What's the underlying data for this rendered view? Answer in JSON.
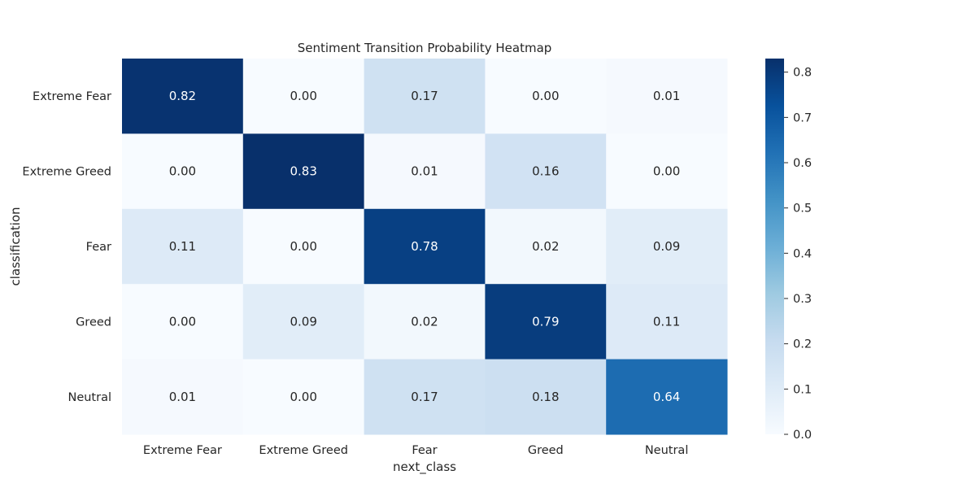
{
  "chart_data": {
    "type": "heatmap",
    "title": "Sentiment Transition Probability Heatmap",
    "xlabel": "next_class",
    "ylabel": "classification",
    "x_categories": [
      "Extreme Fear",
      "Extreme Greed",
      "Fear",
      "Greed",
      "Neutral"
    ],
    "y_categories": [
      "Extreme Fear",
      "Extreme Greed",
      "Fear",
      "Greed",
      "Neutral"
    ],
    "values": [
      [
        0.82,
        0.0,
        0.17,
        0.0,
        0.01
      ],
      [
        0.0,
        0.83,
        0.01,
        0.16,
        0.0
      ],
      [
        0.11,
        0.0,
        0.78,
        0.02,
        0.09
      ],
      [
        0.0,
        0.09,
        0.02,
        0.79,
        0.11
      ],
      [
        0.01,
        0.0,
        0.17,
        0.18,
        0.64
      ]
    ],
    "colormap": "Blues",
    "vmin": 0.0,
    "vmax": 0.83,
    "colorbar_ticks": [
      "0.0",
      "0.1",
      "0.2",
      "0.3",
      "0.4",
      "0.5",
      "0.6",
      "0.7",
      "0.8"
    ],
    "colorbar_tick_values": [
      0.0,
      0.1,
      0.2,
      0.3,
      0.4,
      0.5,
      0.6,
      0.7,
      0.8
    ],
    "annotation_format": "0.00"
  }
}
